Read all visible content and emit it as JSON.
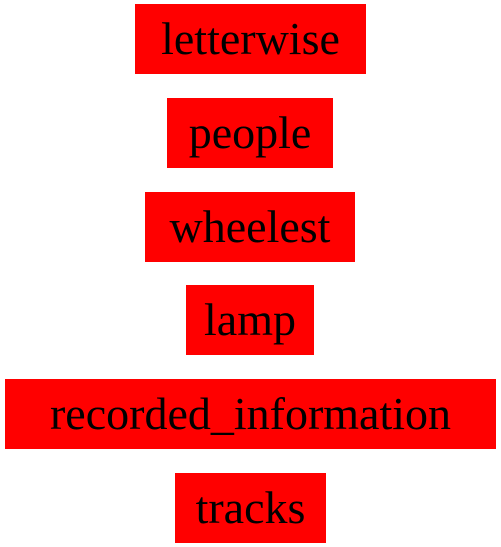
{
  "words": [
    "letterwise",
    "people",
    "wheelest",
    "lamp",
    "recorded_information",
    "tracks"
  ],
  "colors": {
    "label_background": "#ff0000",
    "label_text": "#000000",
    "page_background": "#ffffff"
  }
}
